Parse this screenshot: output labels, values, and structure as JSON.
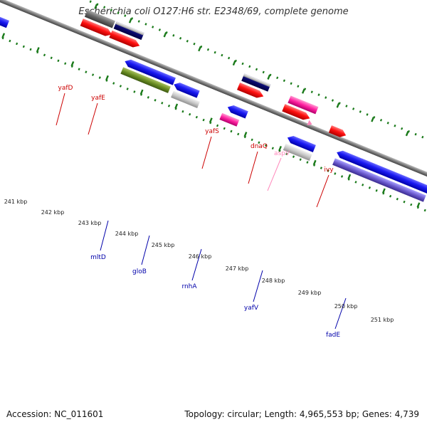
{
  "title": "Escherichia coli O127:H6 str. E2348/69, complete genome",
  "footer": {
    "accession": "Accession: NC_011601",
    "topology": "Topology: circular; Length: 4,965,553 bp; Genes: 4,739"
  },
  "colors": {
    "forward_gene": "#ff1010",
    "reverse_gene": "#1010f0",
    "forward_label": "#cc0000",
    "reverse_label": "#0000aa",
    "pseudo_label": "#ff88bb",
    "backbone": "#777777",
    "tick": "#1a7a1a"
  },
  "kbp_labels": [
    "241 kbp",
    "242 kbp",
    "243 kbp",
    "244 kbp",
    "245 kbp",
    "246 kbp",
    "247 kbp",
    "248 kbp",
    "249 kbp",
    "250 kbp",
    "251 kbp"
  ],
  "gene_labels": {
    "forward": [
      "yafD",
      "yafE",
      "yafS",
      "dnaQ",
      "aspV",
      "ivy"
    ],
    "reverse": [
      "mltD",
      "gloB",
      "rnhA",
      "yafV",
      "fadE"
    ]
  }
}
